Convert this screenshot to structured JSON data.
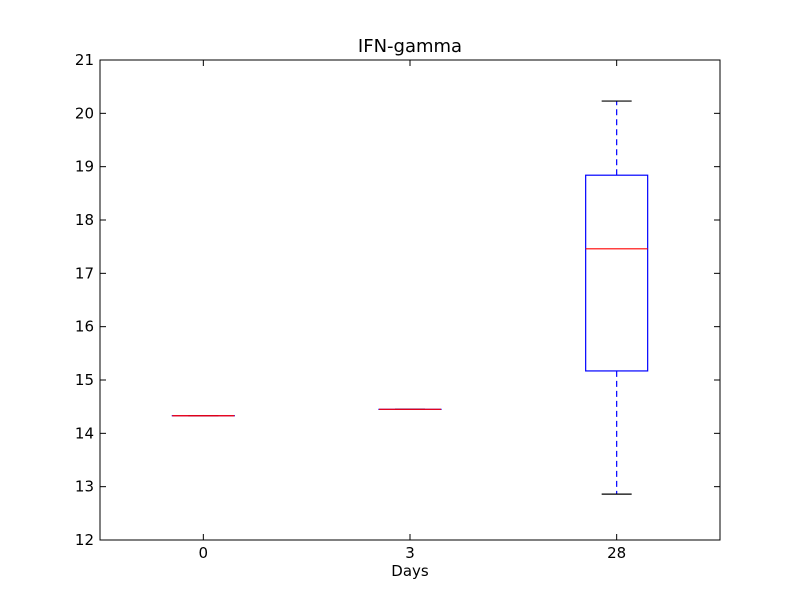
{
  "chart_data": {
    "type": "box",
    "title": "IFN-gamma",
    "xlabel": "Days",
    "ylabel": "",
    "categories": [
      "0",
      "3",
      "28"
    ],
    "boxes": [
      {
        "category": "0",
        "whisker_low": 14.33,
        "q1": 14.33,
        "median": 14.33,
        "q3": 14.33,
        "whisker_high": 14.33
      },
      {
        "category": "3",
        "whisker_low": 14.45,
        "q1": 14.45,
        "median": 14.45,
        "q3": 14.45,
        "whisker_high": 14.45
      },
      {
        "category": "28",
        "whisker_low": 12.86,
        "q1": 15.17,
        "median": 17.46,
        "q3": 18.84,
        "whisker_high": 20.23
      }
    ],
    "ylim": [
      12,
      21
    ],
    "y_ticks": [
      "12",
      "13",
      "14",
      "15",
      "16",
      "17",
      "18",
      "19",
      "20",
      "21"
    ],
    "grid": false,
    "legend": "none",
    "colors": {
      "box": "#0000ff",
      "median": "#ff0000",
      "whisker": "#0000ff",
      "cap": "#000000",
      "axes": "#000000"
    }
  }
}
